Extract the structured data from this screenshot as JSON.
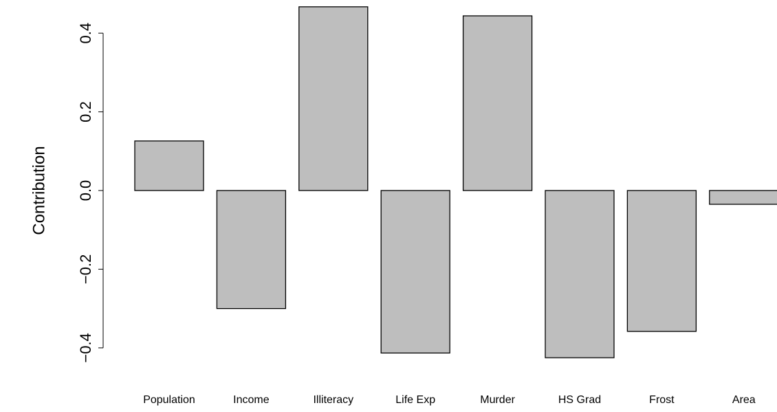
{
  "chart_data": {
    "type": "bar",
    "y_label": "Contribution",
    "categories": [
      "Population",
      "Income",
      "Illiteracy",
      "Life Exp",
      "Murder",
      "HS Grad",
      "Frost",
      "Area"
    ],
    "values": [
      0.126,
      -0.3,
      0.467,
      -0.413,
      0.444,
      -0.425,
      -0.358,
      -0.035
    ],
    "color": "#bebebe",
    "ylim": [
      -0.5,
      0.5
    ],
    "yticks": [
      {
        "value": -0.4,
        "label": "−0.4"
      },
      {
        "value": -0.2,
        "label": "−0.2"
      },
      {
        "value": 0,
        "label": "0.0"
      },
      0.2,
      0.4
    ],
    "grid": false
  }
}
